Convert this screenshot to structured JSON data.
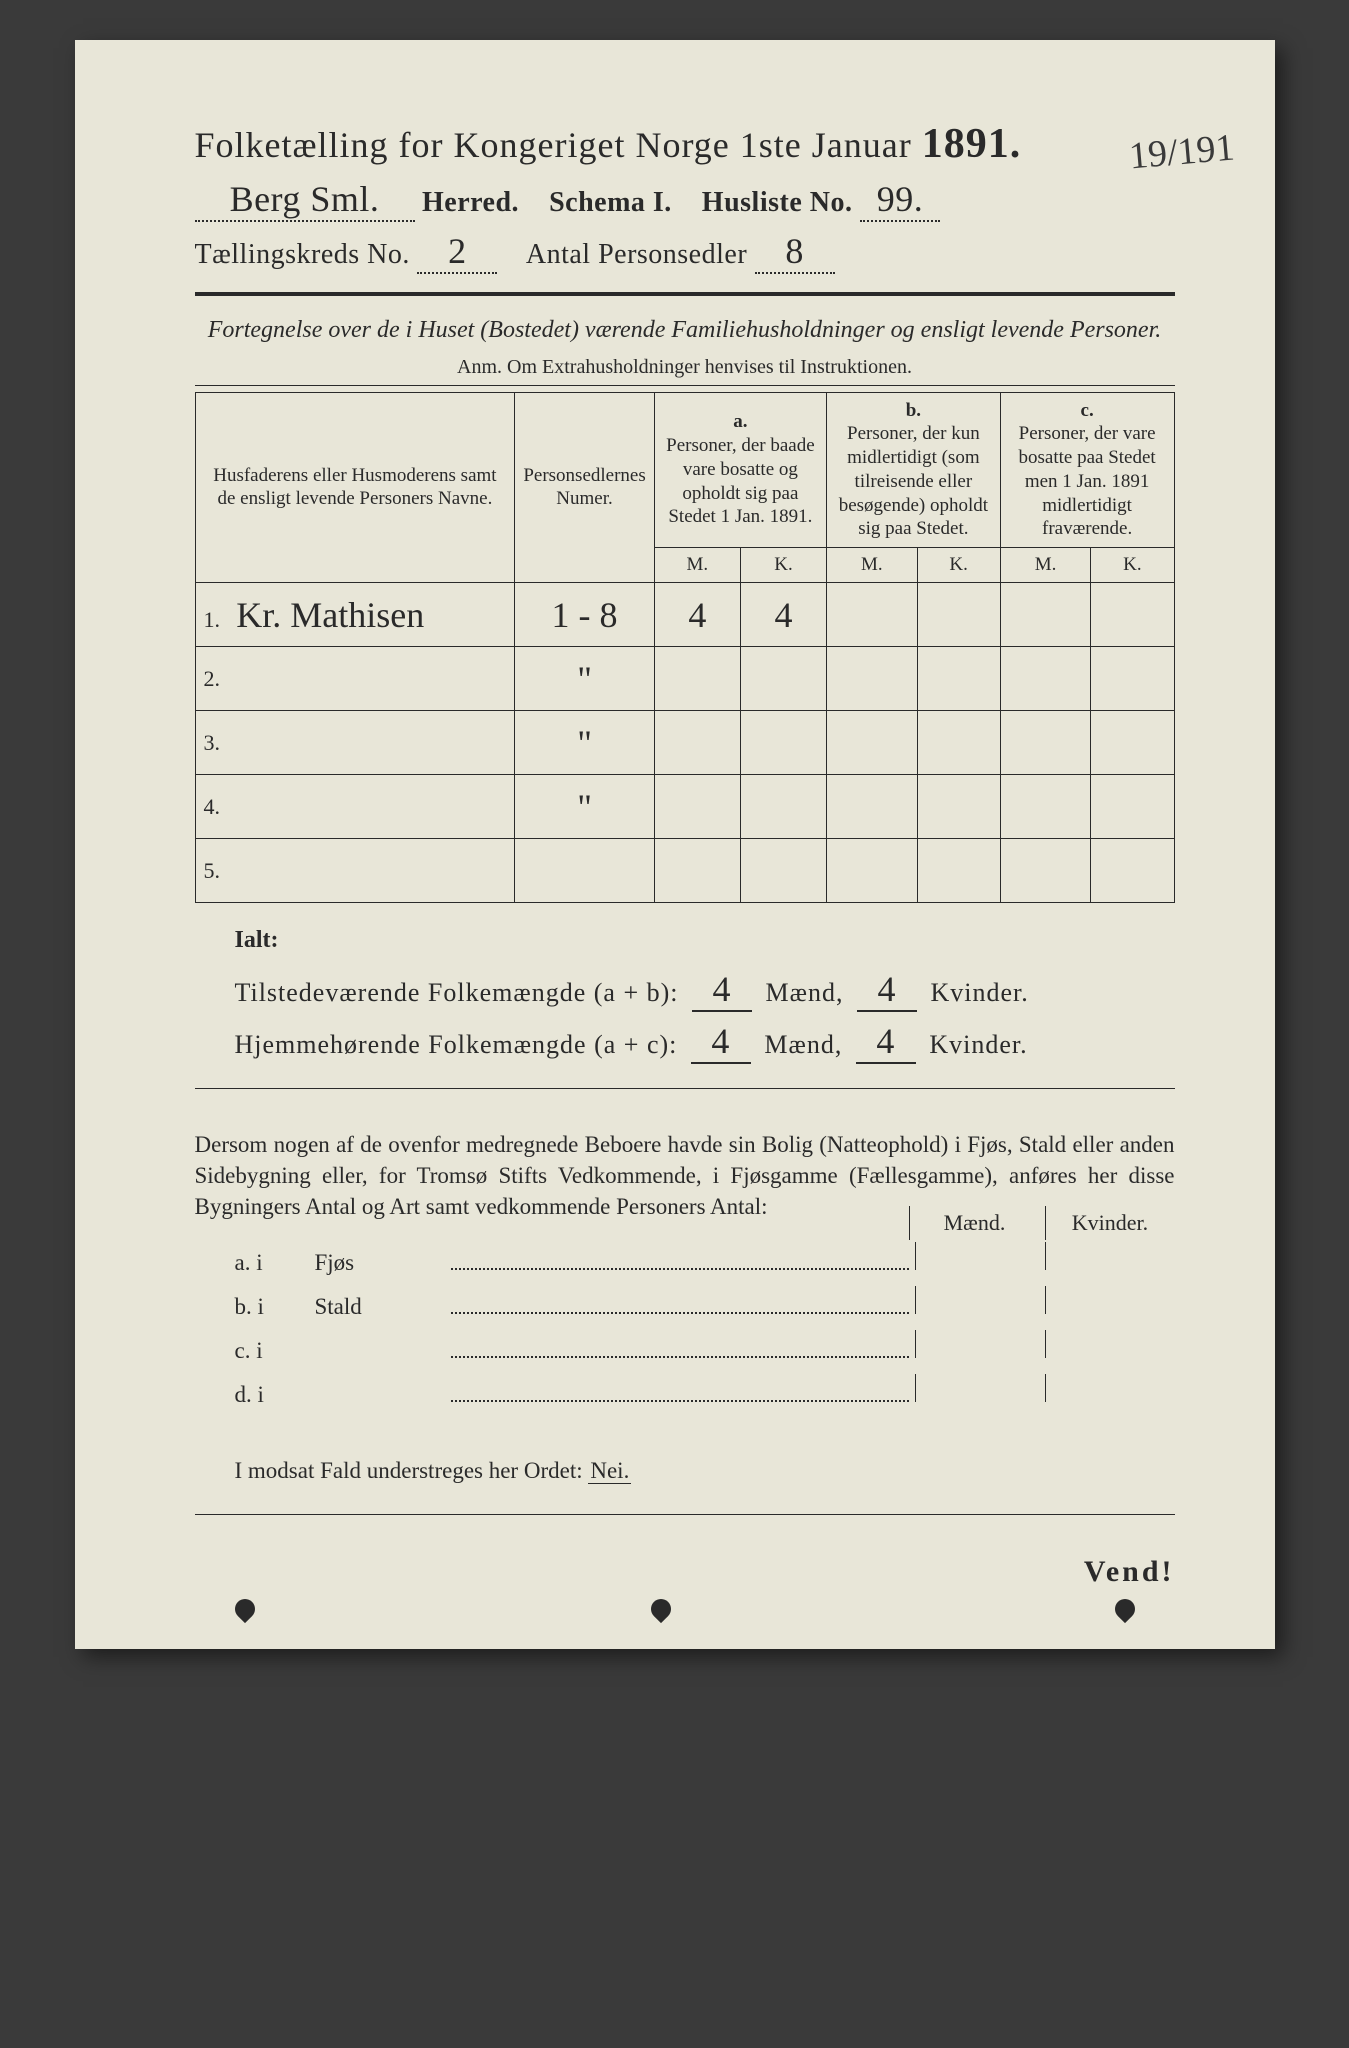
{
  "colors": {
    "paper": "#e8e6d8",
    "ink": "#2a2a2a",
    "frame": "#3a3a3a"
  },
  "header": {
    "title_prefix": "Folketælling for Kongeriget Norge 1ste Januar",
    "year": "1891.",
    "herred_hand": "Berg Sml.",
    "herred_label": "Herred.",
    "schema": "Schema I.",
    "husliste_label": "Husliste No.",
    "husliste_no": "99.",
    "kreds_label": "Tællingskreds No.",
    "kreds_no": "2",
    "antal_label": "Antal Personsedler",
    "antal_no": "8",
    "margin_note": "19/191"
  },
  "subtitle": "Fortegnelse over de i Huset (Bostedet) værende Familiehusholdninger og ensligt levende Personer.",
  "anm": "Anm. Om Extrahusholdninger henvises til Instruktionen.",
  "table": {
    "col1": "Husfaderens eller Husmoderens samt de ensligt levende Personers Navne.",
    "col2": "Personsedlernes Numer.",
    "col_a_label": "a.",
    "col_a": "Personer, der baade vare bosatte og opholdt sig paa Stedet 1 Jan. 1891.",
    "col_b_label": "b.",
    "col_b": "Personer, der kun midlertidigt (som tilreisende eller besøgende) opholdt sig paa Stedet.",
    "col_c_label": "c.",
    "col_c": "Personer, der vare bosatte paa Stedet men 1 Jan. 1891 midlertidigt fraværende.",
    "m": "M.",
    "k": "K.",
    "rows": [
      {
        "n": "1.",
        "name": "Kr. Mathisen",
        "num": "1 - 8",
        "am": "4",
        "ak": "4",
        "bm": "",
        "bk": "",
        "cm": "",
        "ck": ""
      },
      {
        "n": "2.",
        "name": "",
        "num": "\"",
        "am": "",
        "ak": "",
        "bm": "",
        "bk": "",
        "cm": "",
        "ck": ""
      },
      {
        "n": "3.",
        "name": "",
        "num": "\"",
        "am": "",
        "ak": "",
        "bm": "",
        "bk": "",
        "cm": "",
        "ck": ""
      },
      {
        "n": "4.",
        "name": "",
        "num": "\"",
        "am": "",
        "ak": "",
        "bm": "",
        "bk": "",
        "cm": "",
        "ck": ""
      },
      {
        "n": "5.",
        "name": "",
        "num": "",
        "am": "",
        "ak": "",
        "bm": "",
        "bk": "",
        "cm": "",
        "ck": ""
      }
    ]
  },
  "totals": {
    "ialt": "Ialt:",
    "line1_label": "Tilstedeværende Folkemængde (a + b):",
    "line2_label": "Hjemmehørende Folkemængde (a + c):",
    "maend": "Mænd,",
    "kvinder": "Kvinder.",
    "v1m": "4",
    "v1k": "4",
    "v2m": "4",
    "v2k": "4"
  },
  "paragraph": "Dersom nogen af de ovenfor medregnede Beboere havde sin Bolig (Natteophold) i Fjøs, Stald eller anden Sidebygning eller, for Tromsø Stifts Vedkommende, i Fjøsgamme (Fællesgamme), anføres her disse Bygningers Antal og Art samt vedkommende Personers Antal:",
  "buildings": {
    "header_m": "Mænd.",
    "header_k": "Kvinder.",
    "rows": [
      {
        "l": "a. i",
        "name": "Fjøs"
      },
      {
        "l": "b. i",
        "name": "Stald"
      },
      {
        "l": "c. i",
        "name": ""
      },
      {
        "l": "d. i",
        "name": ""
      }
    ]
  },
  "modsat_prefix": "I modsat Fald understreges her Ordet: ",
  "modsat_word": "Nei.",
  "vend": "Vend!"
}
